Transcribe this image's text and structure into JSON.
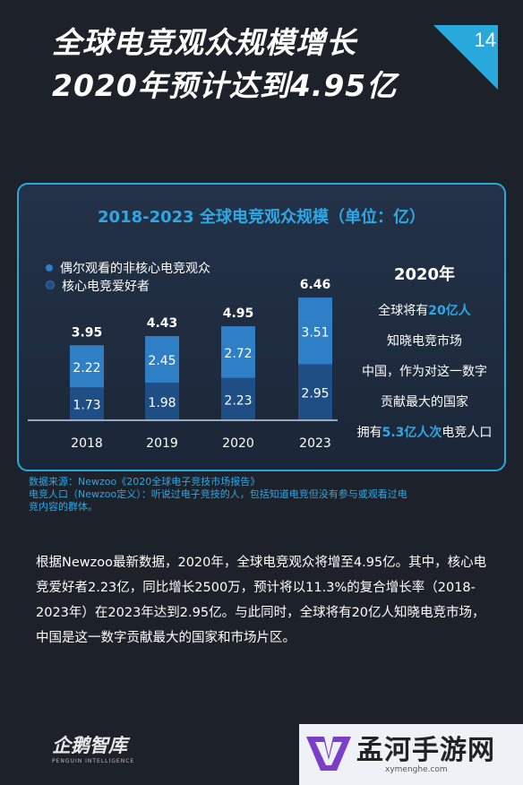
{
  "header": {
    "title_line1": "全球电竞观众规模增长",
    "title_line2": "2020年预计达到4.95亿",
    "page_number": "14"
  },
  "chart_data": {
    "type": "bar",
    "title": "2018-2023 全球电竞观众规模（单位：亿）",
    "categories": [
      "2018",
      "2019",
      "2020",
      "2023"
    ],
    "series": [
      {
        "name": "核心电竞爱好者",
        "values": [
          1.73,
          1.98,
          2.23,
          2.95
        ],
        "color": "#1f4e84"
      },
      {
        "name": "偶尔观看的非核心电竞观众",
        "values": [
          2.22,
          2.45,
          2.72,
          3.51
        ],
        "color": "#2f7fc7"
      }
    ],
    "totals": [
      3.95,
      4.43,
      4.95,
      6.46
    ],
    "stacked": true,
    "legend_position": "top-left",
    "grid": false
  },
  "legend": {
    "item1": "偶尔观看的非核心电竞观众",
    "item2": "核心电竞爱好者"
  },
  "side_panel": {
    "title": "2020年",
    "line1_pre": "全球将有",
    "line1_hl": "20亿人",
    "line2": "知晓电竞市场",
    "line3": "中国，作为对这一数字",
    "line4": "贡献最大的国家",
    "line5_pre": "拥有",
    "line5_hl": "5.3亿人次",
    "line5_post": "电竞人口"
  },
  "source": {
    "line1": "数据来源：Newzoo《2020全球电子竞技市场报告》",
    "line2": "电竞人口（Newzoo定义）：听说过电子竞技的人，包括知道电竞但没有参与或观看过电",
    "line3": "竞内容的群体。"
  },
  "paragraph": "根据Newzoo最新数据，2020年，全球电竞观众将增至4.95亿。其中，核心电竞爱好者2.23亿，同比增长2500万，预计将以11.3%的复合增长率（2018-2023年）在2023年达到2.95亿。与此同时，全球将有20亿人知晓电竞市场，中国是这一数字贡献最大的国家和市场片区。",
  "brand": {
    "name_cn": "企鹅智库",
    "name_en": "PENGUIN INTELLIGENCE"
  },
  "watermark": {
    "name": "孟河手游网",
    "url": "xymenghe.com"
  },
  "colors": {
    "accent": "#2ea7e4",
    "background": "#1d2129",
    "panel_border": "#29a8dc"
  }
}
